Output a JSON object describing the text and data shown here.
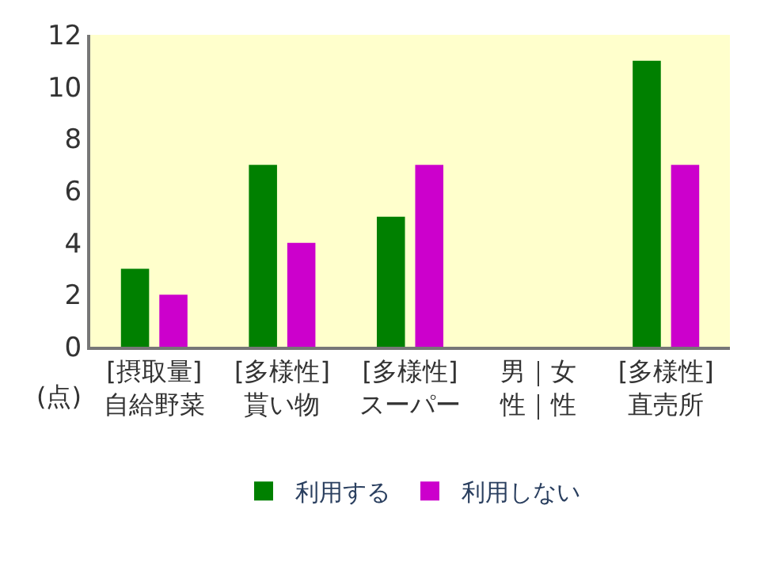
{
  "chart_data": {
    "type": "bar",
    "ylabel": "(点)",
    "categories": [
      "[摂取量]\n自給野菜",
      "[多様性]\n貰い物",
      "[多様性]\nスーパー",
      "男｜女性｜性",
      "[多様性]\n直売所"
    ],
    "series": [
      {
        "name": "利用する",
        "color": "#008000",
        "values": [
          3,
          7,
          5,
          null,
          11
        ]
      },
      {
        "name": "利用しない",
        "color": "#cc00cc",
        "values": [
          2,
          4,
          7,
          null,
          7
        ]
      }
    ],
    "ylim": [
      0,
      12
    ],
    "yticks": [
      0,
      2,
      4,
      6,
      8,
      10,
      12
    ],
    "grid": false,
    "legend": "bottom"
  }
}
